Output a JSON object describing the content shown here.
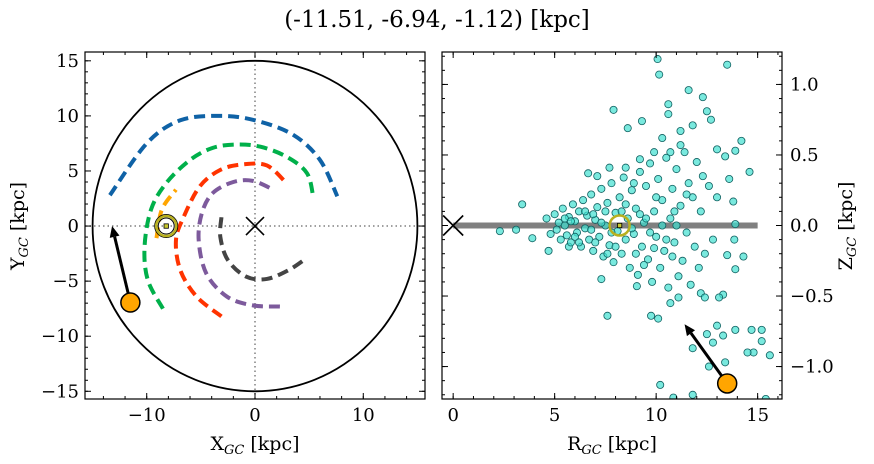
{
  "title": "(-11.51, -6.94, -1.12) [kpc]",
  "chart_data": [
    {
      "type": "line",
      "panel": "left",
      "xlabel": {
        "main": "X",
        "sub": "GC",
        "unit": " [kpc]"
      },
      "ylabel": {
        "main": "Y",
        "sub": "GC",
        "unit": " [kpc]"
      },
      "xlim": [
        -15.7,
        15.7
      ],
      "ylim": [
        -15.7,
        15.8
      ],
      "xticks": [
        -10,
        0,
        10
      ],
      "yticks": [
        -15,
        -10,
        -5,
        0,
        5,
        10,
        15
      ],
      "xtick_labels": [
        "−10",
        "0",
        "10"
      ],
      "ytick_labels": [
        "−15",
        "−10",
        "−5",
        "0",
        "5",
        "10",
        "15"
      ],
      "grid": false,
      "boundary_circle_radius": 15,
      "reference_lines": {
        "x": 0,
        "y": 0,
        "style": "dotted",
        "color": "#808080"
      },
      "center_marker": {
        "x": 0,
        "y": 0,
        "marker": "x"
      },
      "sun": {
        "x": -8.2,
        "y": 0
      },
      "object": {
        "x": -11.51,
        "y": -6.94,
        "color": "#ffa500"
      },
      "arrow": {
        "from": [
          -11.51,
          -6.94
        ],
        "to": [
          -13.2,
          0.0
        ]
      },
      "series": [
        {
          "color": "#0f62a6",
          "points": [
            [
              -13.4,
              2.8
            ],
            [
              -10.0,
              7.5
            ],
            [
              -6.9,
              9.6
            ],
            [
              -3.2,
              10.0
            ],
            [
              0,
              9.6
            ],
            [
              3.5,
              8.3
            ],
            [
              6.0,
              6.0
            ],
            [
              7.6,
              2.7
            ]
          ]
        },
        {
          "color": "#00b04a",
          "points": [
            [
              -8.5,
              -7.5
            ],
            [
              -9.9,
              -4.9
            ],
            [
              -10.2,
              -1.9
            ],
            [
              -9.6,
              1.5
            ],
            [
              -8.2,
              3.9
            ],
            [
              -6.0,
              6.0
            ],
            [
              -3.9,
              7.1
            ],
            [
              -1.7,
              7.4
            ],
            [
              0.5,
              7.2
            ],
            [
              2.9,
              6.3
            ],
            [
              4.8,
              4.8
            ],
            [
              5.4,
              2.5
            ]
          ]
        },
        {
          "color": "#ffa500",
          "points": [
            [
              -9.1,
              -1.1
            ],
            [
              -8.6,
              1.5
            ],
            [
              -7.3,
              3.3
            ]
          ]
        },
        {
          "color": "#ff3300",
          "points": [
            [
              -3.1,
              -8.2
            ],
            [
              -5.4,
              -6.4
            ],
            [
              -6.9,
              -4.0
            ],
            [
              -7.3,
              -1.3
            ],
            [
              -6.6,
              0.8
            ],
            [
              -5.1,
              3.6
            ],
            [
              -3.2,
              5.1
            ],
            [
              -1.1,
              5.6
            ],
            [
              1.1,
              5.5
            ],
            [
              2.9,
              3.9
            ]
          ]
        },
        {
          "color": "#7d5a9c",
          "points": [
            [
              2.3,
              -7.3
            ],
            [
              -0.2,
              -7.2
            ],
            [
              -2.6,
              -6.4
            ],
            [
              -4.5,
              -4.3
            ],
            [
              -5.2,
              -1.3
            ],
            [
              -4.9,
              1.2
            ],
            [
              -3.9,
              3.0
            ],
            [
              -2.0,
              4.0
            ],
            [
              -0.2,
              4.1
            ],
            [
              1.7,
              3.3
            ]
          ]
        },
        {
          "color": "#444444",
          "points": [
            [
              -3.1,
              0.8
            ],
            [
              -3.2,
              -1.0
            ],
            [
              -2.5,
              -3.1
            ],
            [
              -0.8,
              -4.6
            ],
            [
              1.1,
              -4.8
            ],
            [
              3.1,
              -4.0
            ],
            [
              4.5,
              -3.1
            ]
          ]
        }
      ]
    },
    {
      "type": "scatter",
      "panel": "right",
      "xlabel": {
        "main": "R",
        "sub": "GC",
        "unit": " [kpc]"
      },
      "ylabel": {
        "main": "Z",
        "sub": "GC",
        "unit": " [kpc]"
      },
      "xlim": [
        -0.55,
        16.2
      ],
      "ylim": [
        -1.23,
        1.23
      ],
      "xticks": [
        0,
        5,
        10,
        15
      ],
      "yticks": [
        -1.0,
        -0.5,
        0.0,
        0.5,
        1.0
      ],
      "xtick_labels": [
        "0",
        "5",
        "10",
        "15"
      ],
      "ytick_labels": [
        "−1.0",
        "−0.5",
        "0.0",
        "0.5",
        "1.0"
      ],
      "grid": false,
      "point_color": "#40e0d0",
      "plane_line": {
        "y": 0,
        "x": [
          0,
          15
        ],
        "color": "#808080"
      },
      "center_marker": {
        "x": 0,
        "y": 0,
        "marker": "x"
      },
      "sun": {
        "x": 8.2,
        "y": 0
      },
      "object": {
        "x": 13.5,
        "y": -1.12,
        "color": "#ffa500"
      },
      "arrow": {
        "from": [
          13.5,
          -1.12
        ],
        "to": [
          11.4,
          -0.7
        ]
      },
      "points": [
        [
          10.07,
          1.18
        ],
        [
          10.15,
          1.07
        ],
        [
          13.5,
          1.14
        ],
        [
          11.6,
          0.96
        ],
        [
          12.3,
          0.91
        ],
        [
          7.9,
          0.82
        ],
        [
          10.6,
          0.86
        ],
        [
          10.6,
          0.79
        ],
        [
          9.3,
          0.74
        ],
        [
          8.6,
          0.69
        ],
        [
          10.3,
          0.62
        ],
        [
          11.2,
          0.67
        ],
        [
          11.8,
          0.71
        ],
        [
          12.5,
          0.81
        ],
        [
          12.7,
          0.75
        ],
        [
          14.2,
          0.6
        ],
        [
          14.6,
          0.38
        ],
        [
          13.9,
          0.53
        ],
        [
          3.4,
          0.15
        ],
        [
          2.3,
          -0.04
        ],
        [
          3.1,
          -0.03
        ],
        [
          3.9,
          -0.09
        ],
        [
          7.6,
          -0.64
        ],
        [
          9.75,
          -0.64
        ],
        [
          10.1,
          -0.66
        ],
        [
          13.0,
          -0.71
        ],
        [
          13.9,
          -0.74
        ],
        [
          14.7,
          -0.74
        ],
        [
          15.2,
          -0.74
        ],
        [
          15.2,
          -0.82
        ],
        [
          15.6,
          -0.92
        ],
        [
          14.8,
          -0.9
        ],
        [
          14.5,
          -0.9
        ],
        [
          13.3,
          -0.78
        ],
        [
          12.8,
          -0.83
        ],
        [
          12.5,
          -0.77
        ],
        [
          11.8,
          -0.87
        ],
        [
          12.6,
          -1.0
        ],
        [
          13.4,
          -0.97
        ],
        [
          10.2,
          -1.13
        ],
        [
          10.85,
          -1.22
        ],
        [
          11.8,
          -1.2
        ],
        [
          15.4,
          -1.23
        ],
        [
          14.3,
          -0.22
        ],
        [
          13.9,
          -0.31
        ],
        [
          13.3,
          -0.49
        ],
        [
          13.1,
          -0.51
        ],
        [
          12.2,
          -0.48
        ],
        [
          12.4,
          -0.51
        ],
        [
          10.7,
          -0.55
        ],
        [
          11.1,
          -0.51
        ],
        [
          9.05,
          -0.43
        ],
        [
          7.3,
          -0.38
        ],
        [
          4.7,
          -0.18
        ],
        [
          5.7,
          -0.15
        ],
        [
          6.65,
          0.37
        ],
        [
          7.1,
          0.35
        ],
        [
          7.7,
          0.41
        ],
        [
          8.5,
          0.41
        ],
        [
          9.2,
          0.47
        ],
        [
          9.9,
          0.52
        ],
        [
          10.7,
          0.52
        ],
        [
          11.2,
          0.57
        ],
        [
          13.0,
          0.54
        ],
        [
          13.4,
          0.49
        ],
        [
          13.6,
          0.33
        ],
        [
          13.8,
          0.17
        ],
        [
          13.9,
          0.01
        ],
        [
          13.85,
          -0.1
        ],
        [
          13.5,
          -0.21
        ],
        [
          4.6,
          0.05
        ],
        [
          4.8,
          -0.06
        ],
        [
          5.0,
          0.08
        ],
        [
          5.1,
          -0.03
        ],
        [
          5.2,
          0.02
        ],
        [
          5.3,
          -0.1
        ],
        [
          5.4,
          0.12
        ],
        [
          5.5,
          0.0
        ],
        [
          5.6,
          -0.07
        ],
        [
          5.7,
          0.06
        ],
        [
          5.8,
          -0.12
        ],
        [
          5.9,
          0.15
        ],
        [
          6.0,
          0.03
        ],
        [
          6.1,
          -0.05
        ],
        [
          6.2,
          0.1
        ],
        [
          6.3,
          -0.15
        ],
        [
          6.4,
          0.18
        ],
        [
          6.5,
          -0.02
        ],
        [
          6.6,
          0.07
        ],
        [
          6.7,
          -0.1
        ],
        [
          6.8,
          0.22
        ],
        [
          6.9,
          -0.18
        ],
        [
          7.0,
          0.04
        ],
        [
          7.1,
          0.13
        ],
        [
          7.2,
          -0.08
        ],
        [
          7.3,
          0.26
        ],
        [
          7.4,
          -0.22
        ],
        [
          7.5,
          0.0
        ],
        [
          7.6,
          0.16
        ],
        [
          7.7,
          -0.14
        ],
        [
          7.8,
          0.3
        ],
        [
          7.9,
          -0.26
        ],
        [
          8.0,
          0.09
        ],
        [
          8.1,
          -0.04
        ],
        [
          8.2,
          0.2
        ],
        [
          8.3,
          -0.2
        ],
        [
          8.4,
          0.34
        ],
        [
          8.5,
          -0.1
        ],
        [
          8.6,
          0.05
        ],
        [
          8.7,
          -0.3
        ],
        [
          8.8,
          0.25
        ],
        [
          8.9,
          -0.06
        ],
        [
          9.0,
          0.12
        ],
        [
          9.1,
          -0.35
        ],
        [
          9.2,
          0.38
        ],
        [
          9.3,
          -0.15
        ],
        [
          9.4,
          0.02
        ],
        [
          9.5,
          0.28
        ],
        [
          9.6,
          -0.24
        ],
        [
          9.7,
          0.44
        ],
        [
          9.8,
          -0.4
        ],
        [
          9.9,
          0.1
        ],
        [
          10.0,
          -0.08
        ],
        [
          10.1,
          0.33
        ],
        [
          10.2,
          -0.3
        ],
        [
          10.3,
          0.18
        ],
        [
          10.4,
          -0.18
        ],
        [
          10.5,
          0.48
        ],
        [
          10.6,
          -0.44
        ],
        [
          10.7,
          0.05
        ],
        [
          10.8,
          0.26
        ],
        [
          10.9,
          -0.12
        ],
        [
          11.0,
          0.4
        ],
        [
          11.1,
          -0.36
        ],
        [
          11.2,
          0.14
        ],
        [
          11.3,
          -0.25
        ],
        [
          11.4,
          0.52
        ],
        [
          11.5,
          -0.05
        ],
        [
          11.6,
          0.3
        ],
        [
          11.7,
          -0.42
        ],
        [
          11.8,
          0.2
        ],
        [
          11.9,
          -0.15
        ],
        [
          12.0,
          0.45
        ],
        [
          12.1,
          -0.3
        ],
        [
          12.2,
          0.1
        ],
        [
          12.3,
          0.35
        ],
        [
          12.4,
          -0.2
        ],
        [
          12.6,
          0.28
        ],
        [
          12.8,
          -0.1
        ],
        [
          13.0,
          0.2
        ],
        [
          5.5,
          0.05
        ],
        [
          6.0,
          -0.08
        ],
        [
          6.5,
          0.1
        ],
        [
          7.0,
          -0.12
        ],
        [
          7.5,
          0.1
        ],
        [
          8.0,
          -0.15
        ],
        [
          8.5,
          0.15
        ],
        [
          9.0,
          -0.2
        ],
        [
          9.5,
          0.05
        ],
        [
          10.0,
          0.2
        ],
        [
          10.5,
          -0.1
        ],
        [
          11.0,
          0.0
        ],
        [
          7.3,
          0.02
        ],
        [
          8.8,
          -0.02
        ],
        [
          9.7,
          -0.05
        ],
        [
          6.8,
          -0.03
        ],
        [
          10.3,
          0.0
        ],
        [
          5.8,
          0.03
        ],
        [
          6.2,
          -0.12
        ],
        [
          7.8,
          -0.05
        ],
        [
          9.2,
          0.08
        ],
        [
          10.8,
          -0.22
        ],
        [
          11.5,
          0.22
        ],
        [
          8.3,
          0.1
        ],
        [
          6.9,
          0.08
        ],
        [
          9.9,
          -0.16
        ],
        [
          10.9,
          0.1
        ],
        [
          7.6,
          -0.2
        ],
        [
          8.9,
          0.3
        ],
        [
          9.4,
          -0.28
        ]
      ]
    }
  ]
}
